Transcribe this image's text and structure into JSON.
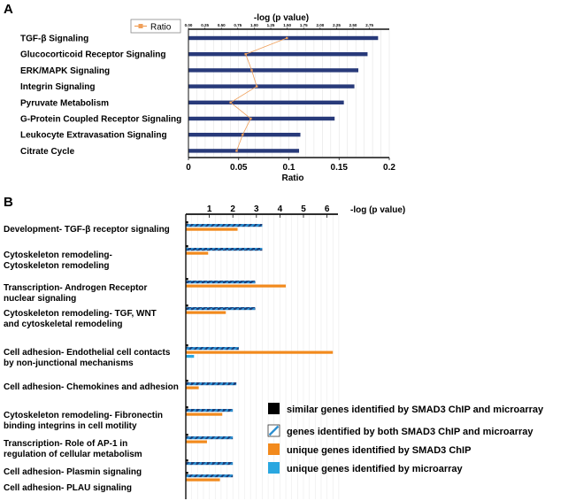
{
  "panels": [
    {
      "letter": "A",
      "legend_label": "Ratio",
      "top_axis_title": "-log (p value)",
      "bottom_axis_title": "Ratio",
      "top_ticks": [
        "0.00",
        "0.25",
        "0.50",
        "0.75",
        "1.00",
        "1.25",
        "1.50",
        "1.75",
        "2.00",
        "2.25",
        "2.50",
        "2.75"
      ],
      "colors": {
        "bar": "#283a7a",
        "ratio": "#f0a05a"
      }
    },
    {
      "letter": "B",
      "top_axis_title": "-log (p value)",
      "colors": {
        "similar": "#000000",
        "both_stroke": "#2d8fd0",
        "both_fill": "#1c3f7a",
        "smad3": "#f28a1d",
        "microarray": "#2aa7e0"
      },
      "legend": [
        {
          "key": "similar",
          "label": "similar genes identified by SMAD3 ChIP and microarray"
        },
        {
          "key": "both",
          "label": "genes identified by both SMAD3 ChIP and microarray"
        },
        {
          "key": "smad3",
          "label": "unique genes identified by SMAD3 ChIP"
        },
        {
          "key": "microarray",
          "label": "unique genes identified by microarray"
        }
      ]
    }
  ],
  "chart_data": [
    {
      "type": "bar",
      "orientation": "horizontal",
      "categories": [
        "TGF-β Signaling",
        "Glucocorticoid Receptor Signaling",
        "ERK/MAPK Signaling",
        "Integrin Signaling",
        "Pyruvate Metabolism",
        "G-Protein Coupled Receptor Signaling",
        "Leukocyte Extravasation Signaling",
        "Citrate Cycle"
      ],
      "series": [
        {
          "name": "",
          "axis": "-log (p value)",
          "values": [
            2.88,
            2.72,
            2.58,
            2.52,
            2.36,
            2.22,
            1.7,
            1.68
          ]
        },
        {
          "name": "Ratio",
          "axis": "Ratio",
          "type": "line",
          "values": [
            0.098,
            0.057,
            0.063,
            0.068,
            0.042,
            0.062,
            0.054,
            0.048
          ]
        }
      ],
      "top_axis": {
        "label": "-log (p value)",
        "range": [
          0,
          3.05
        ]
      },
      "bottom_axis": {
        "label": "Ratio",
        "range": [
          0,
          0.2
        ],
        "ticks": [
          0,
          0.05,
          0.1,
          0.15,
          0.2
        ],
        "tick_labels": [
          "0",
          "0.05",
          "0.1",
          "0.15",
          "0.2"
        ]
      },
      "legend_placement": "top-left",
      "grid": true
    },
    {
      "type": "bar",
      "orientation": "horizontal",
      "categories": [
        [
          "Development- TGF-β receptor signaling"
        ],
        [
          "Cytoskeleton remodeling-",
          "Cytoskeleton remodeling"
        ],
        [
          "Transcription- Androgen Receptor",
          "nuclear signaling"
        ],
        [
          "Cytoskeleton remodeling- TGF, WNT",
          "and cytoskeletal remodeling"
        ],
        [
          "Cell adhesion- Endothelial cell contacts",
          "by non-junctional mechanisms"
        ],
        [
          "Cell adhesion- Chemokines and adhesion"
        ],
        [
          "Cytoskeleton remodeling- Fibronectin",
          "binding integrins in cell motility"
        ],
        [
          "Transcription- Role of AP-1 in",
          "regulation of cellular metabolism"
        ],
        [
          "Cell adhesion- Plasmin signaling"
        ],
        [
          "Cell adhesion- PLAU signaling"
        ]
      ],
      "series": [
        {
          "name": "similar genes identified by SMAD3 ChIP and microarray",
          "values": [
            0.1,
            0.1,
            0.1,
            0.1,
            0.1,
            0.1,
            0.1,
            0.1,
            0.1,
            0.1
          ]
        },
        {
          "name": "genes identified by both SMAD3 ChIP and microarray",
          "values": [
            3.25,
            3.25,
            2.95,
            2.95,
            2.25,
            2.15,
            2.0,
            2.0,
            2.0,
            2.0
          ]
        },
        {
          "name": "unique genes identified by SMAD3 ChIP",
          "values": [
            2.2,
            0.95,
            4.25,
            1.7,
            6.25,
            0.55,
            1.55,
            0.9,
            0.0,
            1.45
          ]
        },
        {
          "name": "unique genes identified by microarray",
          "values": [
            0.0,
            0.0,
            0.0,
            0.0,
            0.35,
            0.0,
            0.0,
            0.0,
            0.0,
            0.0
          ]
        }
      ],
      "top_axis": {
        "label": "-log (p value)",
        "range": [
          0,
          6.6
        ],
        "ticks": [
          1,
          2,
          3,
          4,
          5,
          6
        ],
        "tick_labels": [
          "1",
          "2",
          "3",
          "4",
          "5",
          "6"
        ]
      },
      "legend_placement": "bottom-right",
      "grid": true
    }
  ]
}
